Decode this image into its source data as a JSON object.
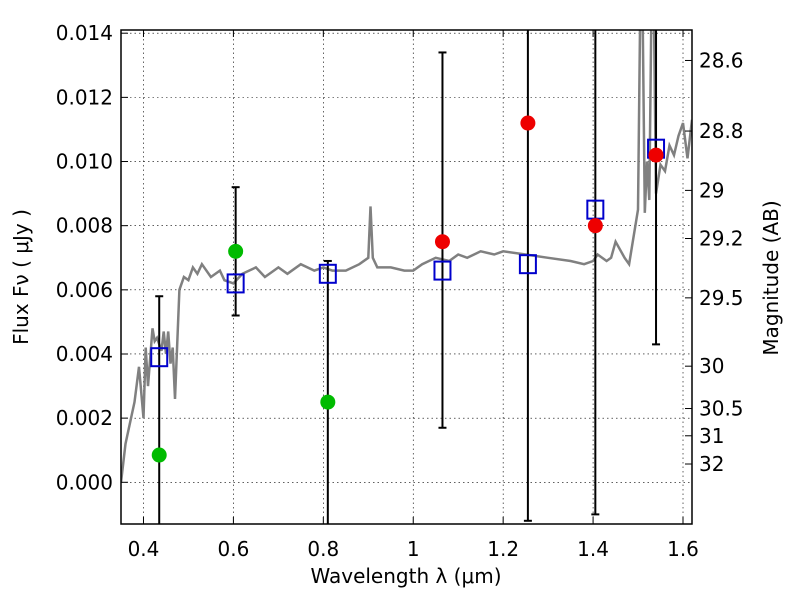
{
  "chart_data": {
    "type": "scatter",
    "title": "",
    "xlabel": "Wavelength  λ (μm)",
    "ylabel": "Flux  Fν  ( μJy )",
    "ylabel_right": "Magnitude (AB)",
    "xlim": [
      0.35,
      1.62
    ],
    "ylim": [
      -0.0013,
      0.0141
    ],
    "x_ticks": [
      0.4,
      0.6,
      0.8,
      1.0,
      1.2,
      1.4,
      1.6
    ],
    "x_tick_labels": [
      "0.4",
      "0.6",
      "0.8",
      "1",
      "1.2",
      "1.4",
      "1.6"
    ],
    "y_ticks": [
      0.0,
      0.002,
      0.004,
      0.006,
      0.008,
      0.01,
      0.012,
      0.014
    ],
    "y_tick_labels": [
      "0.000",
      "0.002",
      "0.004",
      "0.006",
      "0.008",
      "0.010",
      "0.012",
      "0.014"
    ],
    "right_ticks": [
      {
        "label": "28.6",
        "flux": 0.01315
      },
      {
        "label": "28.8",
        "flux": 0.01095
      },
      {
        "label": "29",
        "flux": 0.0091
      },
      {
        "label": "29.2",
        "flux": 0.0076
      },
      {
        "label": "29.5",
        "flux": 0.00575
      },
      {
        "label": "30",
        "flux": 0.00362
      },
      {
        "label": "30.5",
        "flux": 0.0023
      },
      {
        "label": "31",
        "flux": 0.00145
      },
      {
        "label": "32",
        "flux": 0.00057
      }
    ],
    "grid": true,
    "colors": {
      "template": "#808080",
      "model_box": "#0000cc",
      "detection": "#ee0000",
      "upper_limit": "#00bb00",
      "errorbar": "#000000"
    },
    "template_spectrum": {
      "x": [
        0.35,
        0.36,
        0.38,
        0.39,
        0.4,
        0.405,
        0.41,
        0.42,
        0.425,
        0.43,
        0.44,
        0.445,
        0.45,
        0.455,
        0.46,
        0.465,
        0.47,
        0.48,
        0.49,
        0.5,
        0.51,
        0.52,
        0.53,
        0.55,
        0.57,
        0.58,
        0.6,
        0.62,
        0.65,
        0.67,
        0.7,
        0.72,
        0.75,
        0.78,
        0.8,
        0.82,
        0.85,
        0.88,
        0.9,
        0.905,
        0.91,
        0.92,
        0.95,
        0.98,
        1.0,
        1.02,
        1.05,
        1.08,
        1.1,
        1.12,
        1.15,
        1.18,
        1.2,
        1.25,
        1.3,
        1.35,
        1.38,
        1.4,
        1.41,
        1.43,
        1.44,
        1.45,
        1.47,
        1.48,
        1.5,
        1.505,
        1.51,
        1.515,
        1.52,
        1.525,
        1.53,
        1.535,
        1.54,
        1.55,
        1.56,
        1.57,
        1.58,
        1.59,
        1.6,
        1.61,
        1.62
      ],
      "y": [
        0.0,
        0.0012,
        0.0025,
        0.0036,
        0.002,
        0.0042,
        0.003,
        0.0048,
        0.0044,
        0.0045,
        0.0041,
        0.0047,
        0.004,
        0.0047,
        0.0037,
        0.0042,
        0.0026,
        0.006,
        0.0064,
        0.0063,
        0.0067,
        0.0065,
        0.0068,
        0.0064,
        0.0066,
        0.0063,
        0.0062,
        0.0065,
        0.0067,
        0.0064,
        0.0067,
        0.0065,
        0.0068,
        0.0066,
        0.0067,
        0.0066,
        0.0066,
        0.0068,
        0.007,
        0.0086,
        0.007,
        0.0067,
        0.0067,
        0.0066,
        0.0066,
        0.0068,
        0.007,
        0.0069,
        0.0071,
        0.007,
        0.0072,
        0.0071,
        0.0072,
        0.0071,
        0.007,
        0.0069,
        0.0068,
        0.0069,
        0.0071,
        0.0069,
        0.007,
        0.0075,
        0.007,
        0.0068,
        0.0085,
        0.015,
        0.015,
        0.0084,
        0.01,
        0.0088,
        0.015,
        0.015,
        0.009,
        0.0099,
        0.0097,
        0.0105,
        0.0102,
        0.0108,
        0.0112,
        0.0101,
        0.0113
      ]
    },
    "series": [
      {
        "marker": "open-square",
        "color": "#0000cc",
        "points": [
          {
            "x": 0.435,
            "y": 0.0039
          },
          {
            "x": 0.605,
            "y": 0.0062
          },
          {
            "x": 0.81,
            "y": 0.0065
          },
          {
            "x": 1.065,
            "y": 0.0066
          },
          {
            "x": 1.255,
            "y": 0.0068
          },
          {
            "x": 1.405,
            "y": 0.0085
          },
          {
            "x": 1.54,
            "y": 0.0104
          }
        ]
      },
      {
        "marker": "filled-circle",
        "color": "#00bb00",
        "points": [
          {
            "x": 0.435,
            "y": 0.00085
          },
          {
            "x": 0.605,
            "y": 0.0072
          },
          {
            "x": 0.81,
            "y": 0.0025
          }
        ]
      },
      {
        "marker": "filled-circle",
        "color": "#ee0000",
        "points": [
          {
            "x": 1.065,
            "y": 0.0075
          },
          {
            "x": 1.255,
            "y": 0.0112
          },
          {
            "x": 1.405,
            "y": 0.008
          },
          {
            "x": 1.54,
            "y": 0.0102
          }
        ]
      }
    ],
    "error_bars": [
      {
        "x": 0.435,
        "low": -0.0015,
        "high": 0.0058
      },
      {
        "x": 0.605,
        "low": 0.0052,
        "high": 0.0092
      },
      {
        "x": 0.81,
        "low": -0.0015,
        "high": 0.0069
      },
      {
        "x": 1.065,
        "low": 0.0017,
        "high": 0.0134
      },
      {
        "x": 1.255,
        "low": -0.0012,
        "high": 0.015
      },
      {
        "x": 1.405,
        "low": -0.001,
        "high": 0.015
      },
      {
        "x": 1.54,
        "low": 0.0043,
        "high": 0.015
      }
    ]
  }
}
